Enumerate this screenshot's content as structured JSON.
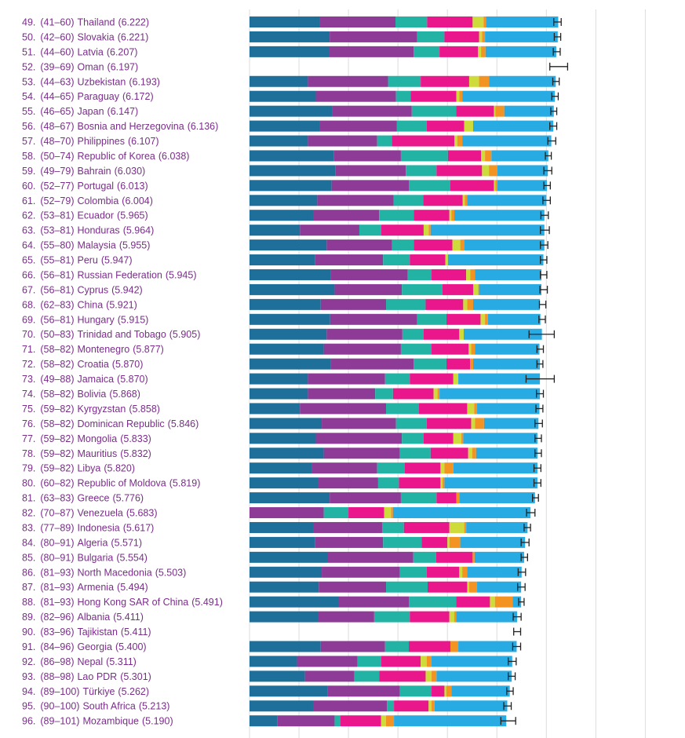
{
  "chart_data": {
    "type": "bar",
    "stacked": true,
    "orientation": "horizontal",
    "xlim": [
      0,
      8
    ],
    "grid": true,
    "legend": "none",
    "segment_colors": [
      "#1e6f9a",
      "#8e3b97",
      "#23b3a4",
      "#ea168c",
      "#cddc3a",
      "#f39322",
      "#28abe2"
    ],
    "rows": [
      {
        "rank": "49.",
        "range": "(41–60)",
        "country": "Thailand",
        "score": "(6.222)",
        "value": 6.222,
        "ci": [
          6.15,
          6.3
        ],
        "segments": [
          1.42,
          1.53,
          0.64,
          0.92,
          0.22,
          0.05,
          1.46
        ]
      },
      {
        "rank": "50.",
        "range": "(42–60)",
        "country": "Slovakia",
        "score": "(6.221)",
        "value": 6.221,
        "ci": [
          6.16,
          6.29
        ],
        "segments": [
          1.62,
          1.77,
          0.55,
          0.7,
          0.06,
          0.06,
          1.47
        ]
      },
      {
        "rank": "51.",
        "range": "(44–60)",
        "country": "Latvia",
        "score": "(6.207)",
        "value": 6.207,
        "ci": [
          6.14,
          6.28
        ],
        "segments": [
          1.61,
          1.71,
          0.52,
          0.78,
          0.06,
          0.09,
          1.43
        ]
      },
      {
        "rank": "52.",
        "range": "(39–69)",
        "country": "Oman",
        "score": "(6.197)",
        "value": 6.197,
        "ci": [
          6.07,
          6.43
        ],
        "segments": []
      },
      {
        "rank": "53.",
        "range": "(44–63)",
        "country": "Uzbekistan",
        "score": "(6.193)",
        "value": 6.193,
        "ci": [
          6.13,
          6.26
        ],
        "segments": [
          1.18,
          1.62,
          0.66,
          0.98,
          0.2,
          0.2,
          1.35
        ]
      },
      {
        "rank": "54.",
        "range": "(44–65)",
        "country": "Paraguay",
        "score": "(6.172)",
        "value": 6.172,
        "ci": [
          6.11,
          6.24
        ],
        "segments": [
          1.34,
          1.62,
          0.3,
          0.92,
          0.06,
          0.06,
          1.87
        ]
      },
      {
        "rank": "55.",
        "range": "(46–65)",
        "country": "Japan",
        "score": "(6.147)",
        "value": 6.147,
        "ci": [
          6.09,
          6.21
        ],
        "segments": [
          1.68,
          1.6,
          0.9,
          0.76,
          0.03,
          0.18,
          1.0
        ]
      },
      {
        "rank": "56.",
        "range": "(48–67)",
        "country": "Bosnia and Herzegovina",
        "score": "(6.136)",
        "value": 6.136,
        "ci": [
          6.07,
          6.21
        ],
        "segments": [
          1.42,
          1.56,
          0.6,
          0.76,
          0.18,
          0.0,
          1.62
        ]
      },
      {
        "rank": "57.",
        "range": "(48–70)",
        "country": "Philippines",
        "score": "(6.107)",
        "value": 6.107,
        "ci": [
          6.03,
          6.19
        ],
        "segments": [
          1.18,
          1.4,
          0.3,
          1.26,
          0.06,
          0.1,
          1.8
        ]
      },
      {
        "rank": "58.",
        "range": "(50–74)",
        "country": "Republic of Korea",
        "score": "(6.038)",
        "value": 6.038,
        "ci": [
          5.98,
          6.1
        ],
        "segments": [
          1.7,
          1.36,
          0.95,
          0.67,
          0.08,
          0.13,
          1.15
        ]
      },
      {
        "rank": "59.",
        "range": "(49–79)",
        "country": "Bahrain",
        "score": "(6.030)",
        "value": 6.03,
        "ci": [
          5.95,
          6.11
        ],
        "segments": [
          1.74,
          1.42,
          0.62,
          0.92,
          0.14,
          0.17,
          1.02
        ]
      },
      {
        "rank": "60.",
        "range": "(52–77)",
        "country": "Portugal",
        "score": "(6.013)",
        "value": 6.013,
        "ci": [
          5.95,
          6.08
        ],
        "segments": [
          1.66,
          1.56,
          0.84,
          0.88,
          0.03,
          0.04,
          1.0
        ]
      },
      {
        "rank": "61.",
        "range": "(52–79)",
        "country": "Colombia",
        "score": "(6.004)",
        "value": 6.004,
        "ci": [
          5.93,
          6.08
        ],
        "segments": [
          1.37,
          1.54,
          0.6,
          0.8,
          0.04,
          0.05,
          1.6
        ]
      },
      {
        "rank": "62.",
        "range": "(53–81)",
        "country": "Ecuador",
        "score": "(5.965)",
        "value": 5.965,
        "ci": [
          5.89,
          6.04
        ],
        "segments": [
          1.3,
          1.32,
          0.7,
          0.72,
          0.04,
          0.06,
          1.82
        ]
      },
      {
        "rank": "63.",
        "range": "(53–81)",
        "country": "Honduras",
        "score": "(5.964)",
        "value": 5.964,
        "ci": [
          5.88,
          6.06
        ],
        "segments": [
          1.02,
          1.2,
          0.44,
          0.86,
          0.1,
          0.04,
          2.3
        ]
      },
      {
        "rank": "64.",
        "range": "(55–80)",
        "country": "Malaysia",
        "score": "(5.955)",
        "value": 5.955,
        "ci": [
          5.88,
          6.03
        ],
        "segments": [
          1.56,
          1.32,
          0.44,
          0.78,
          0.16,
          0.08,
          1.62
        ]
      },
      {
        "rank": "65.",
        "range": "(55–81)",
        "country": "Peru",
        "score": "(5.947)",
        "value": 5.947,
        "ci": [
          5.88,
          6.01
        ],
        "segments": [
          1.32,
          1.38,
          0.54,
          0.72,
          0.05,
          0.0,
          1.93
        ]
      },
      {
        "rank": "66.",
        "range": "(56–81)",
        "country": "Russian Federation",
        "score": "(5.945)",
        "value": 5.945,
        "ci": [
          5.88,
          6.01
        ],
        "segments": [
          1.64,
          1.56,
          0.48,
          0.7,
          0.08,
          0.1,
          1.34
        ]
      },
      {
        "rank": "67.",
        "range": "(56–81)",
        "country": "Cyprus",
        "score": "(5.942)",
        "value": 5.942,
        "ci": [
          5.87,
          6.02
        ],
        "segments": [
          1.72,
          1.36,
          0.82,
          0.62,
          0.1,
          0.02,
          1.26
        ]
      },
      {
        "rank": "68.",
        "range": "(62–83)",
        "country": "China",
        "score": "(5.921)",
        "value": 5.921,
        "ci": [
          5.86,
          5.99
        ],
        "segments": [
          1.44,
          1.32,
          0.8,
          0.76,
          0.08,
          0.12,
          1.35
        ]
      },
      {
        "rank": "69.",
        "range": "(56–81)",
        "country": "Hungary",
        "score": "(5.915)",
        "value": 5.915,
        "ci": [
          5.85,
          5.98
        ],
        "segments": [
          1.63,
          1.76,
          0.59,
          0.69,
          0.09,
          0.06,
          1.06
        ]
      },
      {
        "rank": "70.",
        "range": "(50–83)",
        "country": "Trinidad and Tobago",
        "score": "(5.905)",
        "value": 5.905,
        "ci": [
          5.65,
          6.16
        ],
        "segments": [
          1.56,
          1.53,
          0.43,
          0.72,
          0.09,
          0.0,
          1.58
        ]
      },
      {
        "rank": "71.",
        "range": "(58–82)",
        "country": "Montenegro",
        "score": "(5.877)",
        "value": 5.877,
        "ci": [
          5.81,
          5.94
        ],
        "segments": [
          1.5,
          1.56,
          0.62,
          0.75,
          0.05,
          0.08,
          1.3
        ]
      },
      {
        "rank": "72.",
        "range": "(58–82)",
        "country": "Croatia",
        "score": "(5.870)",
        "value": 5.87,
        "ci": [
          5.81,
          5.93
        ],
        "segments": [
          1.64,
          1.68,
          0.66,
          0.48,
          0.0,
          0.06,
          1.35
        ]
      },
      {
        "rank": "73.",
        "range": "(49–88)",
        "country": "Jamaica",
        "score": "(5.870)",
        "value": 5.87,
        "ci": [
          5.59,
          6.16
        ],
        "segments": [
          1.18,
          1.56,
          0.5,
          0.88,
          0.1,
          0.0,
          1.65
        ]
      },
      {
        "rank": "74.",
        "range": "(58–82)",
        "country": "Bolivia",
        "score": "(5.868)",
        "value": 5.868,
        "ci": [
          5.8,
          5.94
        ],
        "segments": [
          1.18,
          1.36,
          0.36,
          0.82,
          0.08,
          0.04,
          2.03
        ]
      },
      {
        "rank": "75.",
        "range": "(59–82)",
        "country": "Kyrgyzstan",
        "score": "(5.858)",
        "value": 5.858,
        "ci": [
          5.79,
          5.93
        ],
        "segments": [
          1.02,
          1.74,
          0.66,
          0.98,
          0.14,
          0.06,
          1.26
        ]
      },
      {
        "rank": "76.",
        "range": "(58–82)",
        "country": "Dominican Republic",
        "score": "(5.846)",
        "value": 5.846,
        "ci": [
          5.77,
          5.92
        ],
        "segments": [
          1.46,
          1.5,
          0.62,
          0.9,
          0.08,
          0.18,
          1.1
        ]
      },
      {
        "rank": "77.",
        "range": "(59–82)",
        "country": "Mongolia",
        "score": "(5.833)",
        "value": 5.833,
        "ci": [
          5.77,
          5.9
        ],
        "segments": [
          1.34,
          1.74,
          0.44,
          0.6,
          0.16,
          0.04,
          1.5
        ]
      },
      {
        "rank": "78.",
        "range": "(59–82)",
        "country": "Mauritius",
        "score": "(5.832)",
        "value": 5.832,
        "ci": [
          5.77,
          5.9
        ],
        "segments": [
          1.5,
          1.54,
          0.62,
          0.76,
          0.08,
          0.08,
          1.24
        ]
      },
      {
        "rank": "79.",
        "range": "(59–82)",
        "country": "Libya",
        "score": "(5.820)",
        "value": 5.82,
        "ci": [
          5.75,
          5.89
        ],
        "segments": [
          1.26,
          1.32,
          0.56,
          0.72,
          0.08,
          0.18,
          1.7
        ]
      },
      {
        "rank": "80.",
        "range": "(60–82)",
        "country": "Republic of Moldova",
        "score": "(5.819)",
        "value": 5.819,
        "ci": [
          5.75,
          5.89
        ],
        "segments": [
          1.38,
          1.22,
          0.42,
          0.84,
          0.04,
          0.04,
          1.88
        ]
      },
      {
        "rank": "81.",
        "range": "(63–83)",
        "country": "Greece",
        "score": "(5.776)",
        "value": 5.776,
        "ci": [
          5.72,
          5.84
        ],
        "segments": [
          1.62,
          1.44,
          0.72,
          0.4,
          0.0,
          0.06,
          1.53
        ]
      },
      {
        "rank": "82.",
        "range": "(70–87)",
        "country": "Venezuela",
        "score": "(5.683)",
        "value": 5.683,
        "ci": [
          5.6,
          5.77
        ],
        "segments": [
          0.0,
          1.5,
          0.5,
          0.72,
          0.14,
          0.04,
          2.78
        ]
      },
      {
        "rank": "83.",
        "range": "(77–89)",
        "country": "Indonesia",
        "score": "(5.617)",
        "value": 5.617,
        "ci": [
          5.55,
          5.68
        ],
        "segments": [
          1.3,
          1.38,
          0.44,
          0.92,
          0.3,
          0.04,
          1.24
        ]
      },
      {
        "rank": "84.",
        "range": "(80–91)",
        "country": "Algeria",
        "score": "(5.571)",
        "value": 5.571,
        "ci": [
          5.49,
          5.65
        ],
        "segments": [
          1.32,
          1.38,
          0.78,
          0.52,
          0.04,
          0.22,
          1.31
        ]
      },
      {
        "rank": "85.",
        "range": "(80–91)",
        "country": "Bulgaria",
        "score": "(5.554)",
        "value": 5.554,
        "ci": [
          5.49,
          5.62
        ],
        "segments": [
          1.57,
          1.74,
          0.46,
          0.74,
          0.0,
          0.04,
          1.0
        ]
      },
      {
        "rank": "86.",
        "range": "(81–93)",
        "country": "North Macedonia",
        "score": "(5.503)",
        "value": 5.503,
        "ci": [
          5.43,
          5.58
        ],
        "segments": [
          1.46,
          1.58,
          0.54,
          0.66,
          0.06,
          0.1,
          1.1
        ]
      },
      {
        "rank": "87.",
        "range": "(81–93)",
        "country": "Armenia",
        "score": "(5.494)",
        "value": 5.494,
        "ci": [
          5.42,
          5.57
        ],
        "segments": [
          1.4,
          1.36,
          0.84,
          0.8,
          0.04,
          0.16,
          0.89
        ]
      },
      {
        "rank": "88.",
        "range": "(81–93)",
        "country": "Hong Kong SAR of China",
        "score": "(5.491)",
        "value": 5.491,
        "ci": [
          5.44,
          5.55
        ],
        "segments": [
          1.8,
          1.42,
          0.96,
          0.68,
          0.1,
          0.36,
          0.17
        ]
      },
      {
        "rank": "89.",
        "range": "(82–96)",
        "country": "Albania",
        "score": "(5.411)",
        "value": 5.411,
        "ci": [
          5.33,
          5.49
        ],
        "segments": [
          1.38,
          1.14,
          0.72,
          0.8,
          0.1,
          0.04,
          1.23
        ]
      },
      {
        "rank": "90.",
        "range": "(83–96)",
        "country": "Tajikistan",
        "score": "(5.411)",
        "value": 5.411,
        "ci": [
          5.34,
          5.48
        ],
        "segments": []
      },
      {
        "rank": "91.",
        "range": "(84–96)",
        "country": "Georgia",
        "score": "(5.400)",
        "value": 5.4,
        "ci": [
          5.32,
          5.48
        ],
        "segments": [
          1.44,
          1.3,
          0.48,
          0.84,
          0.0,
          0.16,
          1.18
        ]
      },
      {
        "rank": "92.",
        "range": "(86–98)",
        "country": "Nepal",
        "score": "(5.311)",
        "value": 5.311,
        "ci": [
          5.23,
          5.39
        ],
        "segments": [
          0.96,
          1.22,
          0.48,
          0.8,
          0.12,
          0.1,
          1.63
        ]
      },
      {
        "rank": "93.",
        "range": "(88–98)",
        "country": "Lao PDR",
        "score": "(5.301)",
        "value": 5.301,
        "ci": [
          5.23,
          5.37
        ],
        "segments": [
          1.12,
          1.0,
          0.5,
          0.94,
          0.12,
          0.1,
          1.52
        ]
      },
      {
        "rank": "94.",
        "range": "(89–100)",
        "country": "Türkiye",
        "score": "(5.262)",
        "value": 5.262,
        "ci": [
          5.2,
          5.33
        ],
        "segments": [
          1.58,
          1.46,
          0.64,
          0.26,
          0.04,
          0.1,
          1.18
        ]
      },
      {
        "rank": "95.",
        "range": "(90–100)",
        "country": "South Africa",
        "score": "(5.213)",
        "value": 5.213,
        "ci": [
          5.14,
          5.29
        ],
        "segments": [
          1.3,
          1.48,
          0.14,
          0.7,
          0.06,
          0.06,
          1.47
        ]
      },
      {
        "rank": "96.",
        "range": "(89–101)",
        "country": "Mozambique",
        "score": "(5.190)",
        "value": 5.19,
        "ci": [
          5.08,
          5.38
        ],
        "segments": [
          0.56,
          1.16,
          0.12,
          0.82,
          0.1,
          0.16,
          2.27
        ]
      }
    ]
  }
}
